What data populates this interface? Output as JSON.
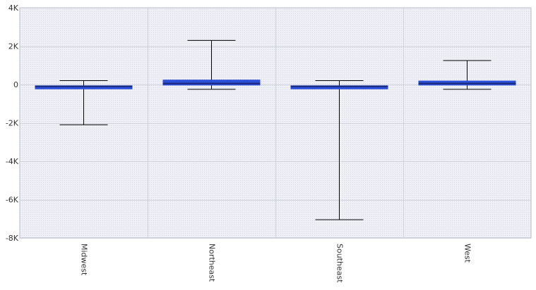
{
  "chart_data": {
    "type": "boxplot",
    "categories": [
      "Midwest",
      "Northeast",
      "Southeast",
      "West"
    ],
    "boxes": [
      {
        "category": "Midwest",
        "whisker_low": -2100,
        "q1": -250,
        "median": -100,
        "q3": -50,
        "whisker_high": 200
      },
      {
        "category": "Northeast",
        "whisker_low": -250,
        "q1": -50,
        "median": 50,
        "q3": 250,
        "whisker_high": 2300
      },
      {
        "category": "Southeast",
        "whisker_low": -7050,
        "q1": -250,
        "median": -100,
        "q3": -50,
        "whisker_high": 200
      },
      {
        "category": "West",
        "whisker_low": -250,
        "q1": -50,
        "median": 50,
        "q3": 200,
        "whisker_high": 1250
      }
    ],
    "y_ticks": [
      4000,
      2000,
      0,
      -2000,
      -4000,
      -6000,
      -8000
    ],
    "y_tick_labels": [
      "4K",
      "2K",
      "0",
      "-2K",
      "-4K",
      "-6K",
      "-8K"
    ],
    "ylim": [
      -8000,
      4000
    ],
    "grid": true,
    "colors": {
      "box": "#2b4fd8",
      "median": "#1a2a7a",
      "whisker": "#000000",
      "plot_bg": "#eef0f6",
      "grid": "#cfd2dc"
    }
  }
}
